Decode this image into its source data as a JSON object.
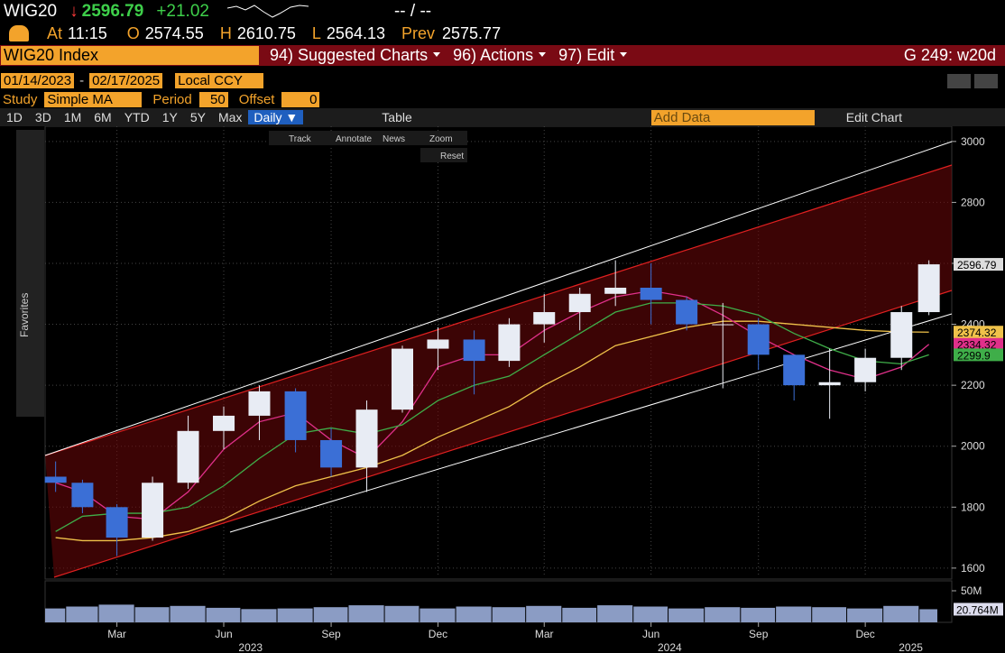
{
  "header": {
    "ticker": "WIG20",
    "arrow": "↓",
    "price": "2596.79",
    "change": "+21.02",
    "bid_ask": "-- / --",
    "at_label": "At",
    "time": "11:15",
    "open_label": "O",
    "open": "2574.55",
    "high_label": "H",
    "high": "2610.75",
    "low_label": "L",
    "low": "2564.13",
    "prev_label": "Prev",
    "prev": "2575.77"
  },
  "menu": {
    "security": "WIG20 Index",
    "items": [
      "94) Suggested Charts",
      "96) Actions",
      "97) Edit"
    ],
    "page": "G 249: w20d"
  },
  "controls": {
    "start_date": "01/14/2023",
    "end_date": "02/17/2025",
    "currency": "Local CCY",
    "study_label": "Study",
    "study": "Simple MA",
    "period_label": "Period",
    "period": "50",
    "offset_label": "Offset",
    "offset": "0",
    "ranges": [
      "1D",
      "3D",
      "1M",
      "6M",
      "YTD",
      "1Y",
      "5Y",
      "Max"
    ],
    "frequency": "Daily ▼",
    "table": "Table",
    "add_data": "Add Data",
    "edit_chart": "Edit Chart",
    "tools": [
      "Track",
      "Annotate",
      "News",
      "Zoom"
    ],
    "reset": "Reset",
    "favorites": "Favorites"
  },
  "chart_data": {
    "type": "candlestick",
    "xlim": [
      "2023-01-14",
      "2025-02-17"
    ],
    "xticks": [
      {
        "value": "2023-03",
        "label": "Mar"
      },
      {
        "value": "2023-06",
        "label": "Jun"
      },
      {
        "value": "2023-09",
        "label": "Sep"
      },
      {
        "value": "2023-12",
        "label": "Dec"
      },
      {
        "value": "2024-03",
        "label": "Mar"
      },
      {
        "value": "2024-06",
        "label": "Jun"
      },
      {
        "value": "2024-09",
        "label": "Sep"
      },
      {
        "value": "2024-12",
        "label": "Dec"
      }
    ],
    "years": [
      "2023",
      "2024",
      "2025"
    ],
    "x": [
      "2023-01",
      "2023-02",
      "2023-03",
      "2023-04",
      "2023-05",
      "2023-06",
      "2023-07",
      "2023-08",
      "2023-09",
      "2023-10",
      "2023-11",
      "2023-12",
      "2024-01",
      "2024-02",
      "2024-03",
      "2024-04",
      "2024-05",
      "2024-06",
      "2024-07",
      "2024-08",
      "2024-09",
      "2024-10",
      "2024-11",
      "2024-12",
      "2025-01",
      "2025-02"
    ],
    "open": [
      1900,
      1880,
      1800,
      1700,
      1880,
      2050,
      2100,
      2180,
      2020,
      1930,
      2120,
      2320,
      2350,
      2280,
      2400,
      2440,
      2500,
      2520,
      2480,
      2400,
      2400,
      2300,
      2200,
      2210,
      2290,
      2440
    ],
    "high": [
      1950,
      1890,
      1810,
      1900,
      2100,
      2130,
      2200,
      2190,
      2060,
      2150,
      2330,
      2390,
      2380,
      2420,
      2500,
      2520,
      2610,
      2600,
      2490,
      2470,
      2420,
      2300,
      2320,
      2320,
      2460,
      2610
    ],
    "low": [
      1850,
      1780,
      1640,
      1690,
      1860,
      1990,
      2020,
      1980,
      1900,
      1850,
      2110,
      2250,
      2170,
      2260,
      2340,
      2380,
      2460,
      2400,
      2380,
      2190,
      2250,
      2150,
      2090,
      2180,
      2250,
      2430
    ],
    "close": [
      1880,
      1800,
      1700,
      1880,
      2050,
      2100,
      2180,
      2020,
      1930,
      2120,
      2320,
      2350,
      2280,
      2400,
      2440,
      2500,
      2520,
      2480,
      2400,
      2400,
      2300,
      2200,
      2210,
      2290,
      2440,
      2596.79
    ],
    "up_color": "#e8ecf4",
    "down_color": "#3b6fd6",
    "ylim": [
      1570,
      3035
    ],
    "yticks": [
      1600,
      1800,
      2000,
      2200,
      2400,
      2600,
      2800,
      3000
    ],
    "grid": true,
    "series": [
      {
        "color": "#f0c24a",
        "values": [
          1700,
          1690,
          1690,
          1700,
          1720,
          1760,
          1820,
          1870,
          1900,
          1930,
          1970,
          2030,
          2080,
          2130,
          2200,
          2260,
          2330,
          2360,
          2390,
          2410,
          2410,
          2400,
          2390,
          2380,
          2375,
          2374.32
        ]
      },
      {
        "color": "#e0308a",
        "values": [
          1880,
          1850,
          1770,
          1760,
          1850,
          1990,
          2080,
          2110,
          2020,
          1960,
          2080,
          2260,
          2300,
          2300,
          2380,
          2440,
          2490,
          2510,
          2490,
          2430,
          2360,
          2300,
          2250,
          2220,
          2260,
          2334.32
        ]
      },
      {
        "color": "#3fae49",
        "values": [
          1720,
          1770,
          1780,
          1780,
          1800,
          1870,
          1960,
          2040,
          2060,
          2040,
          2070,
          2150,
          2200,
          2230,
          2300,
          2370,
          2440,
          2470,
          2470,
          2460,
          2430,
          2370,
          2320,
          2280,
          2270,
          2299.9
        ]
      }
    ],
    "volume": {
      "color": "#8b9cc4",
      "values": [
        22,
        25,
        28,
        24,
        26,
        23,
        21,
        22,
        24,
        27,
        26,
        22,
        25,
        24,
        26,
        23,
        27,
        25,
        22,
        24,
        23,
        25,
        24,
        22,
        26,
        20.764
      ],
      "value_labels": [
        null,
        null,
        null,
        null,
        null,
        null,
        null,
        null,
        null,
        null,
        null,
        null,
        null,
        null,
        null,
        null,
        null,
        null,
        null,
        null,
        null,
        null,
        null,
        null,
        null,
        "20.764M"
      ],
      "ylim": [
        0,
        60
      ],
      "yticks": [
        {
          "value": 50,
          "label": "50M"
        }
      ]
    }
  }
}
